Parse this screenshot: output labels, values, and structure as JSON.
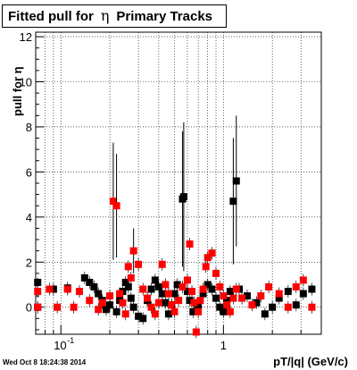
{
  "title": {
    "prefix": "Fitted pull for",
    "symbol": "η",
    "suffix": "Primary Tracks"
  },
  "ylabel": "pull for η",
  "xlabel": "pT/|q| (GeV/c)",
  "timestamp": "Wed Oct  8 18:24:38 2014",
  "chart_data": {
    "type": "scatter",
    "title": "Fitted pull for η Primary Tracks",
    "xlabel": "pT/|q| (GeV/c)",
    "ylabel": "pull for η",
    "xscale": "log",
    "xlim": [
      0.07,
      4.0
    ],
    "ylim": [
      -1.2,
      12.2
    ],
    "grid": true,
    "x_ticks": [
      "10^-1",
      "1"
    ],
    "y_ticks": [
      "0",
      "2",
      "4",
      "6",
      "8",
      "10",
      "12"
    ],
    "colors": {
      "black_series": "#000000",
      "red_series": "#ff0000"
    },
    "series": [
      {
        "color": "black",
        "points": [
          {
            "x": 0.072,
            "y": 1.1,
            "err": 0.2
          },
          {
            "x": 0.072,
            "y": 0.0,
            "err": 0.1
          },
          {
            "x": 0.09,
            "y": 0.8
          },
          {
            "x": 0.11,
            "y": 0.85
          },
          {
            "x": 0.14,
            "y": 1.3
          },
          {
            "x": 0.15,
            "y": 1.1
          },
          {
            "x": 0.16,
            "y": 0.9
          },
          {
            "x": 0.17,
            "y": 0.6
          },
          {
            "x": 0.18,
            "y": 0.3
          },
          {
            "x": 0.19,
            "y": -0.1
          },
          {
            "x": 0.2,
            "y": 0.1
          },
          {
            "x": 0.22,
            "y": -0.2
          },
          {
            "x": 0.23,
            "y": 0.3
          },
          {
            "x": 0.24,
            "y": 0.7
          },
          {
            "x": 0.25,
            "y": 1.1
          },
          {
            "x": 0.26,
            "y": 0.9
          },
          {
            "x": 0.27,
            "y": 0.4
          },
          {
            "x": 0.28,
            "y": 0.0
          },
          {
            "x": 0.3,
            "y": -0.4
          },
          {
            "x": 0.32,
            "y": -0.5
          },
          {
            "x": 0.34,
            "y": 0.3
          },
          {
            "x": 0.36,
            "y": 0.8
          },
          {
            "x": 0.38,
            "y": 1.2
          },
          {
            "x": 0.4,
            "y": 0.9
          },
          {
            "x": 0.42,
            "y": 0.6
          },
          {
            "x": 0.44,
            "y": 0.2
          },
          {
            "x": 0.46,
            "y": -0.3
          },
          {
            "x": 0.48,
            "y": 0.1
          },
          {
            "x": 0.5,
            "y": 0.6
          },
          {
            "x": 0.52,
            "y": 1.0
          },
          {
            "x": 0.56,
            "y": 4.8,
            "err": 3.0
          },
          {
            "x": 0.57,
            "y": 4.9,
            "err": 3.3
          },
          {
            "x": 0.6,
            "y": 0.7
          },
          {
            "x": 0.62,
            "y": 0.3
          },
          {
            "x": 0.65,
            "y": -0.2
          },
          {
            "x": 0.7,
            "y": 0.1
          },
          {
            "x": 0.75,
            "y": 0.6
          },
          {
            "x": 0.8,
            "y": 1.0
          },
          {
            "x": 0.85,
            "y": 0.8
          },
          {
            "x": 0.9,
            "y": 0.4
          },
          {
            "x": 0.95,
            "y": 0.0
          },
          {
            "x": 1.0,
            "y": -0.2
          },
          {
            "x": 1.05,
            "y": 0.3
          },
          {
            "x": 1.1,
            "y": 0.7
          },
          {
            "x": 1.15,
            "y": 4.7,
            "err": 2.8
          },
          {
            "x": 1.2,
            "y": 5.6,
            "err": 2.9
          },
          {
            "x": 1.25,
            "y": 0.8
          },
          {
            "x": 1.4,
            "y": 0.5
          },
          {
            "x": 1.6,
            "y": 0.2
          },
          {
            "x": 1.8,
            "y": -0.3
          },
          {
            "x": 2.0,
            "y": 0.0
          },
          {
            "x": 2.2,
            "y": 0.4
          },
          {
            "x": 2.5,
            "y": 0.7
          },
          {
            "x": 2.8,
            "y": 0.1
          },
          {
            "x": 3.1,
            "y": 0.6
          },
          {
            "x": 3.5,
            "y": 0.8
          }
        ]
      },
      {
        "color": "red",
        "points": [
          {
            "x": 0.072,
            "y": 0.7
          },
          {
            "x": 0.072,
            "y": 0.0
          },
          {
            "x": 0.085,
            "y": 0.8
          },
          {
            "x": 0.095,
            "y": 0.0
          },
          {
            "x": 0.11,
            "y": 0.8
          },
          {
            "x": 0.12,
            "y": 0.0
          },
          {
            "x": 0.13,
            "y": 0.7
          },
          {
            "x": 0.15,
            "y": 0.3
          },
          {
            "x": 0.17,
            "y": -0.1
          },
          {
            "x": 0.18,
            "y": 0.2
          },
          {
            "x": 0.2,
            "y": 0.5
          },
          {
            "x": 0.21,
            "y": 4.7,
            "err": 2.6
          },
          {
            "x": 0.22,
            "y": 4.5,
            "err": 2.3
          },
          {
            "x": 0.23,
            "y": 0.6
          },
          {
            "x": 0.24,
            "y": 0.2
          },
          {
            "x": 0.25,
            "y": -0.3
          },
          {
            "x": 0.26,
            "y": 1.8
          },
          {
            "x": 0.27,
            "y": 1.3
          },
          {
            "x": 0.28,
            "y": 2.5,
            "err": 1.0
          },
          {
            "x": 0.3,
            "y": 1.9
          },
          {
            "x": 0.32,
            "y": 0.8
          },
          {
            "x": 0.34,
            "y": 0.4
          },
          {
            "x": 0.36,
            "y": 0.0
          },
          {
            "x": 0.38,
            "y": -0.3
          },
          {
            "x": 0.4,
            "y": 0.2
          },
          {
            "x": 0.42,
            "y": 1.9
          },
          {
            "x": 0.44,
            "y": 1.0
          },
          {
            "x": 0.46,
            "y": 0.6
          },
          {
            "x": 0.48,
            "y": 0.1
          },
          {
            "x": 0.5,
            "y": -0.2
          },
          {
            "x": 0.53,
            "y": 0.3
          },
          {
            "x": 0.56,
            "y": 0.9
          },
          {
            "x": 0.6,
            "y": 1.2
          },
          {
            "x": 0.62,
            "y": 2.8
          },
          {
            "x": 0.64,
            "y": 0.7
          },
          {
            "x": 0.66,
            "y": 0.2
          },
          {
            "x": 0.68,
            "y": -1.1
          },
          {
            "x": 0.7,
            "y": -0.2
          },
          {
            "x": 0.72,
            "y": 0.3
          },
          {
            "x": 0.75,
            "y": 0.8
          },
          {
            "x": 0.78,
            "y": 1.8
          },
          {
            "x": 0.8,
            "y": 2.2
          },
          {
            "x": 0.85,
            "y": 2.4
          },
          {
            "x": 0.9,
            "y": 1.5
          },
          {
            "x": 0.95,
            "y": 0.9
          },
          {
            "x": 1.0,
            "y": 0.5
          },
          {
            "x": 1.05,
            "y": 0.1
          },
          {
            "x": 1.1,
            "y": -0.2
          },
          {
            "x": 1.15,
            "y": 0.4
          },
          {
            "x": 1.2,
            "y": 0.8
          },
          {
            "x": 1.3,
            "y": 0.4
          },
          {
            "x": 1.5,
            "y": 0.1
          },
          {
            "x": 1.7,
            "y": 0.5
          },
          {
            "x": 1.9,
            "y": 0.9
          },
          {
            "x": 2.2,
            "y": 0.6
          },
          {
            "x": 2.5,
            "y": 0.0
          },
          {
            "x": 2.8,
            "y": 0.9
          },
          {
            "x": 3.1,
            "y": 1.2
          },
          {
            "x": 3.5,
            "y": 0.0
          }
        ]
      }
    ]
  }
}
